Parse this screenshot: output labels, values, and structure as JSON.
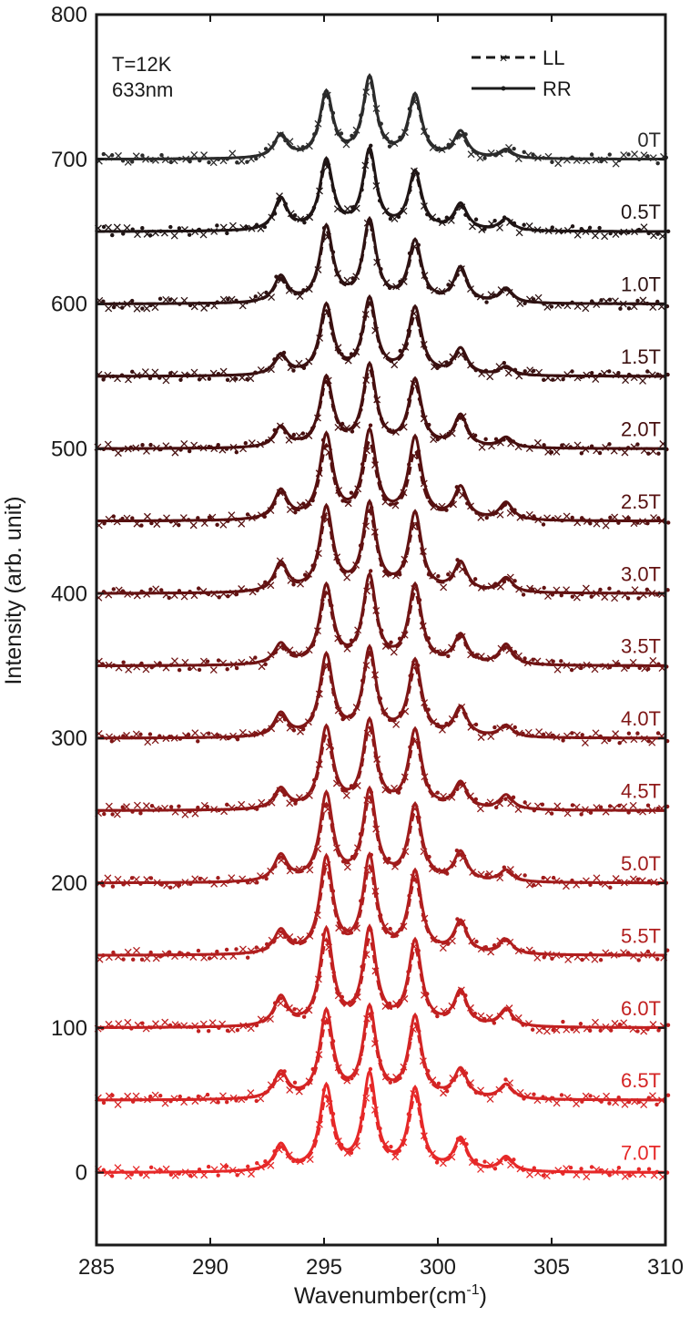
{
  "chart_data": {
    "type": "line",
    "title": "",
    "xlabel": "Wavenumber(cm",
    "xlabel_sup": "-1",
    "xlabel_close": ")",
    "ylabel": "Intensity (arb. unit)",
    "xlim": [
      285,
      310
    ],
    "ylim": [
      -50,
      800
    ],
    "x_ticks": [
      "285",
      "290",
      "295",
      "300",
      "305",
      "310"
    ],
    "y_ticks": [
      "0",
      "100",
      "200",
      "300",
      "400",
      "500",
      "600",
      "700",
      "800"
    ],
    "annotation_lines": [
      "T=12K",
      "633nm"
    ],
    "legend": {
      "position": "top-right",
      "entries": [
        {
          "label": "LL",
          "style": "dashed-cross"
        },
        {
          "label": "RR",
          "style": "solid-dot"
        }
      ]
    },
    "peak_positions": [
      293.1,
      295.1,
      297.0,
      299.0,
      301.0,
      303.0
    ],
    "series": [
      {
        "label": "0T",
        "offset": 700,
        "color": "#2b2b2b",
        "RR": [
          16,
          45,
          55,
          43,
          18,
          6
        ],
        "LL": [
          15,
          42,
          52,
          40,
          15,
          5
        ]
      },
      {
        "label": "0.5T",
        "offset": 650,
        "color": "#1f1515",
        "RR": [
          22,
          48,
          55,
          40,
          18,
          8
        ],
        "LL": [
          20,
          45,
          52,
          37,
          16,
          7
        ]
      },
      {
        "label": "1.0T",
        "offset": 600,
        "color": "#2e1212",
        "RR": [
          18,
          52,
          56,
          42,
          24,
          10
        ],
        "LL": [
          16,
          48,
          53,
          38,
          22,
          9
        ]
      },
      {
        "label": "1.5T",
        "offset": 550,
        "color": "#3a1010",
        "RR": [
          14,
          48,
          52,
          46,
          18,
          6
        ],
        "LL": [
          13,
          43,
          48,
          40,
          16,
          5
        ]
      },
      {
        "label": "2.0T",
        "offset": 500,
        "color": "#470f0f",
        "RR": [
          14,
          48,
          56,
          46,
          22,
          7
        ],
        "LL": [
          13,
          44,
          52,
          42,
          20,
          6
        ]
      },
      {
        "label": "2.5T",
        "offset": 450,
        "color": "#561010",
        "RR": [
          20,
          58,
          60,
          56,
          22,
          12
        ],
        "LL": [
          18,
          50,
          52,
          46,
          20,
          10
        ]
      },
      {
        "label": "3.0T",
        "offset": 400,
        "color": "#621212",
        "RR": [
          20,
          58,
          60,
          54,
          20,
          10
        ],
        "LL": [
          18,
          52,
          54,
          48,
          18,
          9
        ]
      },
      {
        "label": "3.5T",
        "offset": 350,
        "color": "#701414",
        "RR": [
          14,
          54,
          60,
          54,
          20,
          14
        ],
        "LL": [
          12,
          48,
          56,
          48,
          18,
          12
        ]
      },
      {
        "label": "4.0T",
        "offset": 300,
        "color": "#7e1616",
        "RR": [
          16,
          56,
          60,
          52,
          20,
          8
        ],
        "LL": [
          14,
          50,
          56,
          46,
          18,
          7
        ]
      },
      {
        "label": "4.5T",
        "offset": 250,
        "color": "#8e1818",
        "RR": [
          14,
          56,
          60,
          54,
          18,
          10
        ],
        "LL": [
          12,
          50,
          54,
          48,
          16,
          9
        ]
      },
      {
        "label": "5.0T",
        "offset": 200,
        "color": "#a01c1c",
        "RR": [
          18,
          60,
          62,
          52,
          20,
          8
        ],
        "LL": [
          16,
          52,
          56,
          46,
          18,
          7
        ]
      },
      {
        "label": "5.5T",
        "offset": 150,
        "color": "#b11e1e",
        "RR": [
          16,
          66,
          66,
          56,
          22,
          10
        ],
        "LL": [
          14,
          58,
          58,
          50,
          20,
          9
        ]
      },
      {
        "label": "6.0T",
        "offset": 100,
        "color": "#c22020",
        "RR": [
          20,
          66,
          66,
          58,
          24,
          12
        ],
        "LL": [
          18,
          58,
          58,
          52,
          22,
          11
        ]
      },
      {
        "label": "6.5T",
        "offset": 50,
        "color": "#d42424",
        "RR": [
          18,
          60,
          62,
          56,
          20,
          10
        ],
        "LL": [
          16,
          52,
          56,
          50,
          18,
          9
        ]
      },
      {
        "label": "7.0T",
        "offset": 0,
        "color": "#e62828",
        "RR": [
          18,
          58,
          66,
          56,
          22,
          10
        ],
        "LL": [
          16,
          50,
          58,
          50,
          20,
          9
        ]
      }
    ]
  }
}
